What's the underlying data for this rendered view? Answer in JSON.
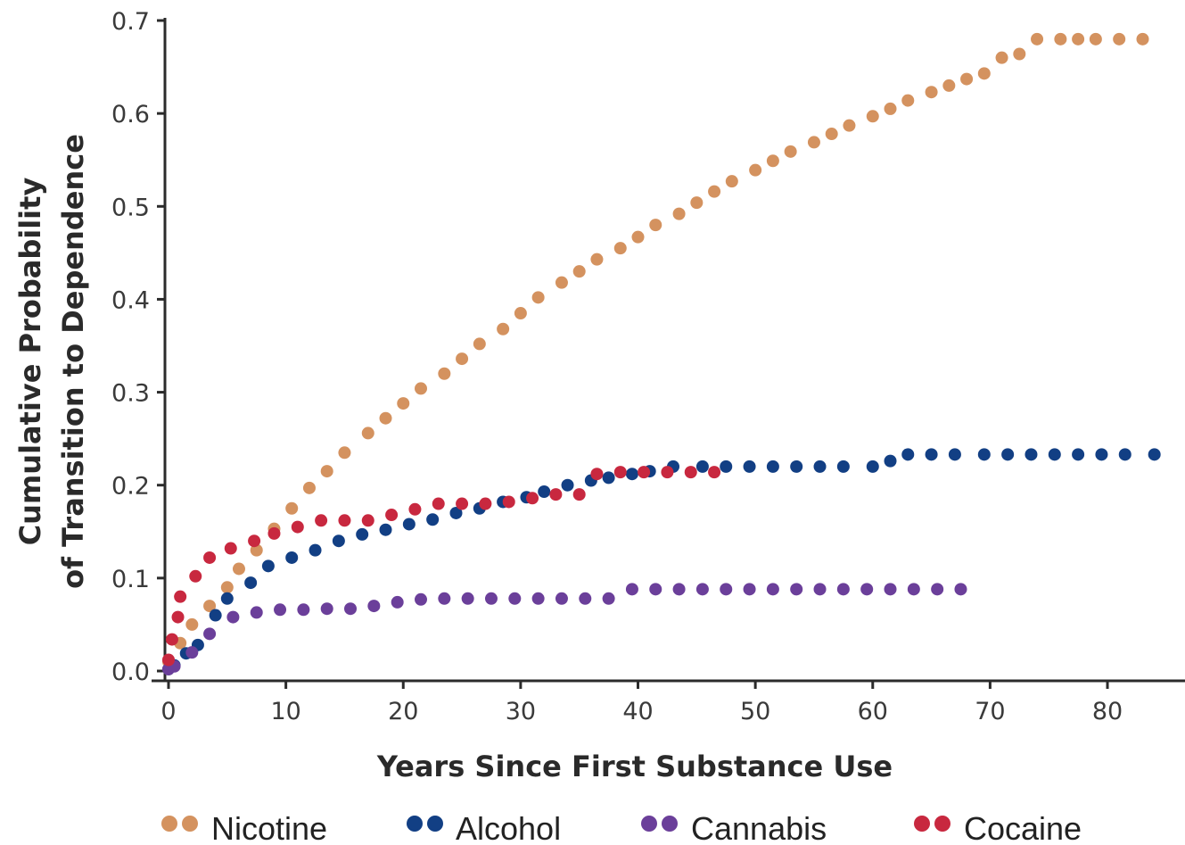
{
  "chart_data": {
    "type": "scatter",
    "title": "",
    "xlabel": "Years Since First Substance Use",
    "ylabel": [
      "Cumulative Probability",
      "of Transition to Dependence"
    ],
    "xlim": [
      0,
      86
    ],
    "ylim": [
      0,
      0.7
    ],
    "x_ticks": [
      0,
      10,
      20,
      30,
      40,
      50,
      60,
      70,
      80
    ],
    "x_tick_labels": [
      "0",
      "10",
      "20",
      "30",
      "40",
      "50",
      "60",
      "70",
      "80"
    ],
    "y_ticks": [
      0,
      0.1,
      0.2,
      0.3,
      0.4,
      0.5,
      0.6,
      0.7
    ],
    "y_tick_labels": [
      "0.0",
      "0.1",
      "0.2",
      "0.3",
      "0.4",
      "0.5",
      "0.6",
      "0.7"
    ],
    "grid": false,
    "legend_position": "bottom",
    "series": [
      {
        "name": "Nicotine",
        "color": "#D4925F",
        "x": [
          0,
          1,
          2,
          3.5,
          5,
          6,
          7.5,
          9,
          10.5,
          12,
          13.5,
          15,
          17,
          18.5,
          20,
          21.5,
          23.5,
          25,
          26.5,
          28.5,
          30,
          31.5,
          33.5,
          35,
          36.5,
          38.5,
          40,
          41.5,
          43.5,
          45,
          46.5,
          48,
          50,
          51.5,
          53,
          55,
          56.5,
          58,
          60,
          61.5,
          63,
          65,
          66.5,
          68,
          69.5,
          71,
          72.5,
          74,
          76,
          77.5,
          79,
          81,
          83
        ],
        "y": [
          0.01,
          0.03,
          0.05,
          0.07,
          0.09,
          0.11,
          0.13,
          0.153,
          0.175,
          0.197,
          0.215,
          0.235,
          0.256,
          0.272,
          0.288,
          0.304,
          0.32,
          0.336,
          0.352,
          0.368,
          0.385,
          0.402,
          0.418,
          0.43,
          0.443,
          0.455,
          0.467,
          0.48,
          0.492,
          0.504,
          0.516,
          0.527,
          0.539,
          0.549,
          0.559,
          0.569,
          0.578,
          0.587,
          0.597,
          0.605,
          0.614,
          0.623,
          0.63,
          0.637,
          0.643,
          0.66,
          0.664,
          0.68,
          0.68,
          0.68,
          0.68,
          0.68,
          0.68
        ]
      },
      {
        "name": "Alcohol",
        "color": "#123F84",
        "x": [
          0,
          0.5,
          1.5,
          2.5,
          4,
          5,
          7,
          8.5,
          10.5,
          12.5,
          14.5,
          16.5,
          18.5,
          20.5,
          22.5,
          24.5,
          26.5,
          28.5,
          30.5,
          32,
          34,
          36,
          37.5,
          39.5,
          41,
          43,
          45.5,
          47.5,
          49.5,
          51.5,
          53.5,
          55.5,
          57.5,
          60,
          61.5,
          63,
          65,
          67,
          69.5,
          71.5,
          73.5,
          75.5,
          77.5,
          79.5,
          81.5,
          84
        ],
        "y": [
          0.002,
          0.006,
          0.019,
          0.028,
          0.06,
          0.078,
          0.095,
          0.113,
          0.122,
          0.13,
          0.14,
          0.147,
          0.152,
          0.158,
          0.163,
          0.17,
          0.175,
          0.182,
          0.187,
          0.193,
          0.2,
          0.205,
          0.208,
          0.212,
          0.215,
          0.22,
          0.22,
          0.22,
          0.22,
          0.22,
          0.22,
          0.22,
          0.22,
          0.22,
          0.226,
          0.233,
          0.233,
          0.233,
          0.233,
          0.233,
          0.233,
          0.233,
          0.233,
          0.233,
          0.233,
          0.233
        ]
      },
      {
        "name": "Cannabis",
        "color": "#6B3F9A",
        "x": [
          0,
          0.5,
          2,
          3.5,
          5.5,
          7.5,
          9.5,
          11.5,
          13.5,
          15.5,
          17.5,
          19.5,
          21.5,
          23.5,
          25.5,
          27.5,
          29.5,
          31.5,
          33.5,
          35.5,
          37.5,
          39.5,
          41.5,
          43.5,
          45.5,
          47.5,
          49.5,
          51.5,
          53.5,
          55.5,
          57.5,
          59.5,
          61.5,
          63.5,
          65.5,
          67.5
        ],
        "y": [
          0.002,
          0.005,
          0.02,
          0.04,
          0.058,
          0.063,
          0.066,
          0.066,
          0.067,
          0.067,
          0.07,
          0.074,
          0.077,
          0.078,
          0.078,
          0.078,
          0.078,
          0.078,
          0.078,
          0.078,
          0.078,
          0.088,
          0.088,
          0.088,
          0.088,
          0.088,
          0.088,
          0.088,
          0.088,
          0.088,
          0.088,
          0.088,
          0.088,
          0.088,
          0.088,
          0.088
        ]
      },
      {
        "name": "Cocaine",
        "color": "#C8283F",
        "x": [
          0,
          0.3,
          0.8,
          1,
          2.3,
          3.5,
          5.3,
          7.3,
          9,
          11,
          13,
          15,
          17,
          19,
          21,
          23,
          25,
          27,
          29,
          31,
          33,
          35,
          36.5,
          38.5,
          40.5,
          42.5,
          44.5,
          46.5
        ],
        "y": [
          0.012,
          0.034,
          0.058,
          0.08,
          0.102,
          0.122,
          0.132,
          0.14,
          0.148,
          0.155,
          0.162,
          0.162,
          0.162,
          0.168,
          0.174,
          0.18,
          0.18,
          0.18,
          0.182,
          0.186,
          0.19,
          0.19,
          0.212,
          0.214,
          0.214,
          0.214,
          0.214,
          0.214
        ]
      }
    ]
  },
  "legend": [
    {
      "label": "Nicotine",
      "color": "#D4925F"
    },
    {
      "label": "Alcohol",
      "color": "#123F84"
    },
    {
      "label": "Cannabis",
      "color": "#6B3F9A"
    },
    {
      "label": "Cocaine",
      "color": "#C8283F"
    }
  ]
}
